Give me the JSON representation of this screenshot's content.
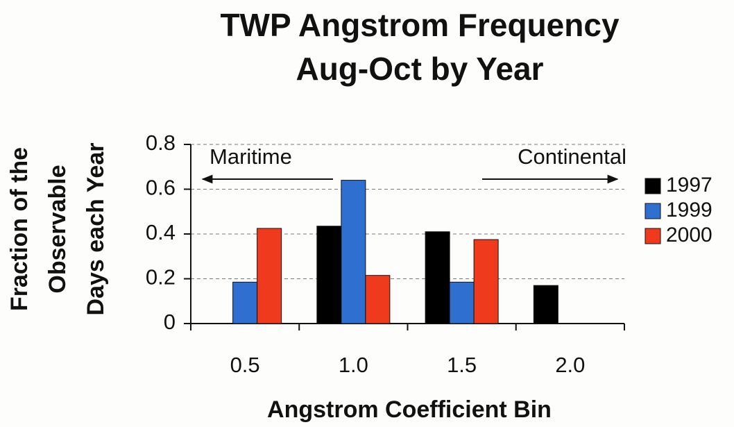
{
  "chart_data": {
    "type": "bar",
    "title": [
      "TWP Angstrom Frequency",
      "Aug-Oct by Year"
    ],
    "y_label": [
      "Fraction of the",
      "Observable",
      "Days each Year"
    ],
    "x_label": "Angstrom Coefficient Bin",
    "annotations": [
      "Maritime",
      "Continental"
    ],
    "categories": [
      "0.5",
      "1.0",
      "1.5",
      "2.0"
    ],
    "series": [
      {
        "name": "1997",
        "color": "#000000",
        "values": [
          0,
          0.435,
          0.41,
          0.17
        ]
      },
      {
        "name": "1999",
        "color": "#2f6fd0",
        "values": [
          0.185,
          0.64,
          0.185,
          0
        ]
      },
      {
        "name": "2000",
        "color": "#f03a1e",
        "values": [
          0.425,
          0.215,
          0.375,
          0
        ]
      }
    ],
    "ylim": [
      0,
      0.8
    ],
    "yticks": [
      0,
      0.2,
      0.4,
      0.6,
      0.8
    ],
    "grid": true,
    "legend": "right"
  }
}
